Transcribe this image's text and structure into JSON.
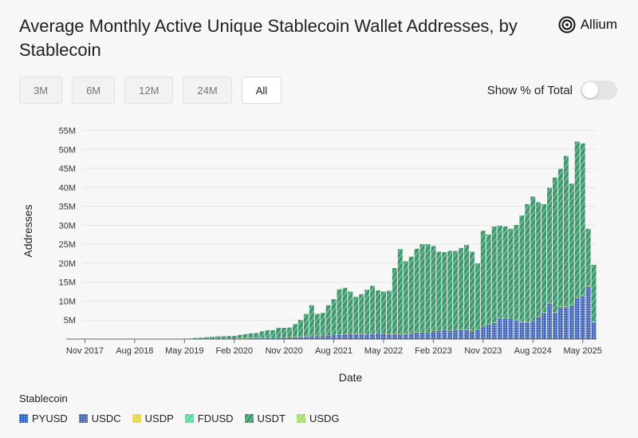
{
  "header": {
    "title": "Average Monthly Active Unique Stablecoin Wallet Addresses, by Stablecoin",
    "brand": "Allium"
  },
  "controls": {
    "ranges": [
      "3M",
      "6M",
      "12M",
      "24M",
      "All"
    ],
    "active_range": "All",
    "toggle_label": "Show % of Total",
    "toggle_on": false
  },
  "legend_title": "Stablecoin",
  "colors": {
    "PYUSD": "#2f66d6",
    "USDC": "#4a6cbf",
    "USDP": "#e8d84a",
    "FDUSD": "#5fd89a",
    "USDT": "#3e9a6e",
    "USDG": "#a8de6e"
  },
  "chart_data": {
    "type": "bar",
    "stacked": true,
    "xlabel": "Date",
    "ylabel": "Addresses",
    "ylim": [
      0,
      57000000
    ],
    "y_ticks": [
      5000000,
      10000000,
      15000000,
      20000000,
      25000000,
      30000000,
      35000000,
      40000000,
      45000000,
      50000000,
      55000000
    ],
    "y_tick_labels": [
      "5M",
      "10M",
      "15M",
      "20M",
      "25M",
      "30M",
      "35M",
      "40M",
      "45M",
      "50M",
      "55M"
    ],
    "x_tick_labels": [
      "Nov 2017",
      "Aug 2018",
      "May 2019",
      "Feb 2020",
      "Nov 2020",
      "Aug 2021",
      "May 2022",
      "Feb 2023",
      "Nov 2023",
      "Aug 2024",
      "May 2025"
    ],
    "x_tick_indices": [
      0,
      9,
      18,
      27,
      36,
      45,
      54,
      63,
      72,
      81,
      90
    ],
    "grid": true,
    "legend_position": "bottom-left",
    "categories": [
      "2017-11",
      "2017-12",
      "2018-01",
      "2018-02",
      "2018-03",
      "2018-04",
      "2018-05",
      "2018-06",
      "2018-07",
      "2018-08",
      "2018-09",
      "2018-10",
      "2018-11",
      "2018-12",
      "2019-01",
      "2019-02",
      "2019-03",
      "2019-04",
      "2019-05",
      "2019-06",
      "2019-07",
      "2019-08",
      "2019-09",
      "2019-10",
      "2019-11",
      "2019-12",
      "2020-01",
      "2020-02",
      "2020-03",
      "2020-04",
      "2020-05",
      "2020-06",
      "2020-07",
      "2020-08",
      "2020-09",
      "2020-10",
      "2020-11",
      "2020-12",
      "2021-01",
      "2021-02",
      "2021-03",
      "2021-04",
      "2021-05",
      "2021-06",
      "2021-07",
      "2021-08",
      "2021-09",
      "2021-10",
      "2021-11",
      "2021-12",
      "2022-01",
      "2022-02",
      "2022-03",
      "2022-04",
      "2022-05",
      "2022-06",
      "2022-07",
      "2022-08",
      "2022-09",
      "2022-10",
      "2022-11",
      "2022-12",
      "2023-01",
      "2023-02",
      "2023-03",
      "2023-04",
      "2023-05",
      "2023-06",
      "2023-07",
      "2023-08",
      "2023-09",
      "2023-10",
      "2023-11",
      "2023-12",
      "2024-01",
      "2024-02",
      "2024-03",
      "2024-04",
      "2024-05",
      "2024-06",
      "2024-07",
      "2024-08",
      "2024-09",
      "2024-10",
      "2024-11",
      "2024-12",
      "2025-01",
      "2025-02",
      "2025-03",
      "2025-04",
      "2025-05",
      "2025-06",
      "2025-07"
    ],
    "series": [
      {
        "name": "PYUSD",
        "values": [
          0,
          0,
          0,
          0,
          0,
          0,
          0,
          0,
          0,
          0,
          0,
          0,
          0,
          0,
          0,
          0,
          0,
          0,
          0,
          0,
          0,
          0,
          0,
          0,
          0,
          0,
          0,
          0,
          0,
          0,
          0,
          0,
          0,
          0,
          0,
          0,
          0,
          0,
          0,
          0,
          0,
          0,
          0,
          0,
          0,
          0,
          0,
          0,
          0,
          0,
          0,
          0,
          0,
          0,
          0,
          0,
          0,
          0,
          0,
          0,
          0,
          0,
          0,
          0,
          0,
          0,
          0,
          0,
          0,
          0,
          0,
          0,
          0,
          0,
          0,
          0,
          0,
          0,
          0,
          0,
          0,
          0,
          0,
          0,
          0,
          0,
          0,
          0,
          0,
          0,
          0,
          0,
          0
        ]
      },
      {
        "name": "USDC",
        "values": [
          0,
          0,
          0,
          0,
          0,
          0,
          0,
          0,
          0,
          0,
          0,
          0,
          0,
          0,
          0,
          0,
          0,
          0,
          0,
          20000,
          40000,
          60000,
          80000,
          100000,
          120000,
          140000,
          160000,
          180000,
          200000,
          220000,
          250000,
          280000,
          310000,
          340000,
          380000,
          420000,
          460000,
          500000,
          550000,
          650000,
          750000,
          850000,
          900000,
          1000000,
          1000000,
          1100000,
          1200000,
          1400000,
          1500000,
          1400000,
          1400000,
          1200000,
          1500000,
          1600000,
          1500000,
          1400000,
          1400000,
          1300000,
          1400000,
          1500000,
          1800000,
          1800000,
          1700000,
          2200000,
          2300000,
          2400000,
          2300000,
          2500000,
          2600000,
          2400000,
          2200000,
          2600000,
          3500000,
          4000000,
          4300000,
          5500000,
          5500000,
          5500000,
          5000000,
          4500000,
          4500000,
          4800000,
          6000000,
          7000000,
          9500000,
          7000000,
          8500000,
          8500000,
          9000000,
          11000000,
          11500000,
          14000000,
          4500000
        ]
      },
      {
        "name": "USDP",
        "values": [
          0,
          0,
          0,
          0,
          0,
          0,
          0,
          0,
          0,
          0,
          0,
          0,
          0,
          0,
          0,
          0,
          0,
          0,
          0,
          0,
          0,
          0,
          0,
          0,
          0,
          0,
          0,
          0,
          30000,
          30000,
          30000,
          30000,
          30000,
          30000,
          30000,
          30000,
          20000,
          20000,
          20000,
          20000,
          20000,
          20000,
          20000,
          20000,
          20000,
          20000,
          20000,
          20000,
          20000,
          20000,
          20000,
          20000,
          20000,
          20000,
          20000,
          20000,
          20000,
          20000,
          20000,
          20000,
          20000,
          20000,
          20000,
          20000,
          20000,
          20000,
          20000,
          20000,
          20000,
          20000,
          20000,
          20000,
          20000,
          20000,
          20000,
          20000,
          20000,
          20000,
          20000,
          20000,
          20000,
          20000,
          20000,
          20000,
          20000,
          20000,
          20000,
          20000,
          20000,
          20000,
          20000,
          20000,
          20000
        ]
      },
      {
        "name": "FDUSD",
        "values": [
          0,
          0,
          0,
          0,
          0,
          0,
          0,
          0,
          0,
          0,
          0,
          0,
          0,
          0,
          0,
          0,
          0,
          0,
          0,
          0,
          0,
          0,
          0,
          0,
          0,
          0,
          0,
          0,
          0,
          0,
          0,
          0,
          0,
          0,
          0,
          0,
          0,
          0,
          0,
          0,
          0,
          0,
          0,
          0,
          0,
          0,
          0,
          0,
          0,
          0,
          0,
          0,
          0,
          0,
          0,
          0,
          0,
          0,
          0,
          0,
          0,
          0,
          0,
          0,
          0,
          0,
          0,
          0,
          0,
          0,
          0,
          30000,
          40000,
          50000,
          60000,
          60000,
          60000,
          60000,
          60000,
          60000,
          60000,
          60000,
          60000,
          60000,
          60000,
          60000,
          60000,
          60000,
          60000,
          60000,
          60000,
          60000,
          60000
        ]
      },
      {
        "name": "USDT",
        "values": [
          0,
          0,
          0,
          0,
          0,
          0,
          0,
          0,
          0,
          0,
          0,
          0,
          0,
          0,
          0,
          0,
          0,
          0,
          0,
          120000,
          260000,
          300000,
          420000,
          500000,
          580000,
          610000,
          640000,
          670000,
          870000,
          1050000,
          1220000,
          1290000,
          1690000,
          1960000,
          1920000,
          2530000,
          2480000,
          2510000,
          3380000,
          4350000,
          5850000,
          8050000,
          5700000,
          5900000,
          7900000,
          9400000,
          11900000,
          12100000,
          11000000,
          9700000,
          10400000,
          11800000,
          12500000,
          11200000,
          11000000,
          11300000,
          17300000,
          22400000,
          19100000,
          20200000,
          22000000,
          23200000,
          23300000,
          22300000,
          20700000,
          20500000,
          20900000,
          20700000,
          21400000,
          22400000,
          20800000,
          17300000,
          25000000,
          23500000,
          25300000,
          24300000,
          24100000,
          23500000,
          25000000,
          28000000,
          31000000,
          32700000,
          30000000,
          28500000,
          30300000,
          35500000,
          36300000,
          39700000,
          31900000,
          41000000,
          40000000,
          15000000,
          15000000
        ]
      },
      {
        "name": "USDG",
        "values": [
          0,
          0,
          0,
          0,
          0,
          0,
          0,
          0,
          0,
          0,
          0,
          0,
          0,
          0,
          0,
          0,
          0,
          0,
          0,
          0,
          0,
          0,
          0,
          0,
          0,
          0,
          0,
          0,
          0,
          0,
          0,
          0,
          0,
          0,
          0,
          0,
          0,
          0,
          0,
          0,
          0,
          0,
          0,
          0,
          0,
          0,
          0,
          0,
          0,
          0,
          0,
          0,
          0,
          0,
          0,
          0,
          0,
          0,
          0,
          0,
          0,
          0,
          0,
          0,
          0,
          0,
          0,
          0,
          0,
          0,
          0,
          0,
          0,
          0,
          0,
          0,
          0,
          0,
          0,
          0,
          0,
          0,
          0,
          0,
          0,
          0,
          0,
          0,
          0,
          0,
          0,
          0,
          0
        ]
      }
    ]
  }
}
